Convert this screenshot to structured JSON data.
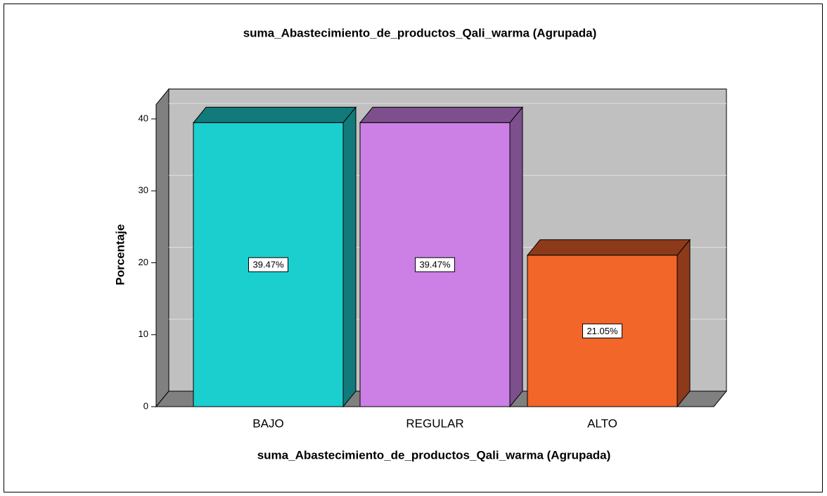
{
  "chart_data": {
    "type": "bar3d",
    "title": "suma_Abastecimiento_de_productos_Qali_warma (Agrupada)",
    "x_label": "suma_Abastecimiento_de_productos_Qali_warma (Agrupada)",
    "y_label": "Porcentaje",
    "categories": [
      "BAJO",
      "REGULAR",
      "ALTO"
    ],
    "values": [
      39.47,
      39.47,
      21.05
    ],
    "value_labels": [
      "39.47%",
      "39.47%",
      "21.05%"
    ],
    "colors": [
      "#1ccfcf",
      "#cc80e6",
      "#f26629"
    ],
    "side_colors": [
      "#127a7a",
      "#7d4f8d",
      "#8d3a1a"
    ],
    "ylim": [
      0,
      42
    ],
    "yticks": [
      0,
      10,
      20,
      30,
      40
    ],
    "grid": true
  }
}
